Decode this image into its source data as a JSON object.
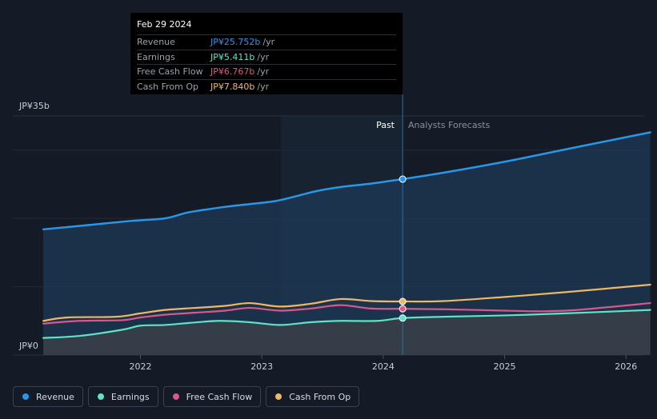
{
  "tooltip": {
    "date": "Feb 29 2024",
    "rows": [
      {
        "label": "Revenue",
        "value": "JP¥25.752b",
        "unit": "/yr",
        "color": "#2a96e8"
      },
      {
        "label": "Earnings",
        "value": "JP¥5.411b",
        "unit": "/yr",
        "color": "#5fe3c6"
      },
      {
        "label": "Free Cash Flow",
        "value": "JP¥6.767b",
        "unit": "/yr",
        "color": "#d9588c"
      },
      {
        "label": "Cash From Op",
        "value": "JP¥7.840b",
        "unit": "/yr",
        "color": "#f0b765"
      }
    ]
  },
  "labels": {
    "past": "Past",
    "forecast": "Analysts Forecasts"
  },
  "legend": [
    {
      "label": "Revenue",
      "color": "#2a96e8"
    },
    {
      "label": "Earnings",
      "color": "#5fe3c6"
    },
    {
      "label": "Free Cash Flow",
      "color": "#d9588c"
    },
    {
      "label": "Cash From Op",
      "color": "#f0b765"
    }
  ],
  "chart_data": {
    "type": "area",
    "title": "",
    "y_unit": "JP¥ billions",
    "ylim": [
      0,
      35
    ],
    "y_tick_labels": [
      {
        "value": 35,
        "label": "JP¥35b"
      },
      {
        "value": 0,
        "label": "JP¥0"
      }
    ],
    "xlim": [
      2021.18,
      2026.2
    ],
    "x_ticks": [
      2022,
      2023,
      2024,
      2025,
      2026
    ],
    "divider_x": 2024.16,
    "past_shade_start": 2023.16,
    "series": [
      {
        "name": "Revenue",
        "color": "#2a96e8",
        "fill": true,
        "x": [
          2021.2,
          2021.5,
          2021.9,
          2022.2,
          2022.4,
          2022.7,
          2022.9,
          2023.1,
          2023.25,
          2023.45,
          2023.65,
          2023.9,
          2024.16,
          2024.5,
          2025.0,
          2025.5,
          2026.2
        ],
        "y": [
          18.4,
          18.9,
          19.6,
          20.0,
          20.9,
          21.7,
          22.1,
          22.5,
          23.1,
          24.0,
          24.6,
          25.1,
          25.75,
          26.7,
          28.3,
          30.1,
          32.6
        ]
      },
      {
        "name": "Earnings",
        "color": "#5fe3c6",
        "fill": false,
        "x": [
          2021.2,
          2021.5,
          2021.85,
          2022.0,
          2022.2,
          2022.4,
          2022.65,
          2022.9,
          2023.15,
          2023.4,
          2023.65,
          2023.95,
          2024.16,
          2024.5,
          2025.0,
          2025.5,
          2026.2
        ],
        "y": [
          2.5,
          2.8,
          3.7,
          4.3,
          4.4,
          4.7,
          5.0,
          4.8,
          4.4,
          4.8,
          5.0,
          5.0,
          5.41,
          5.6,
          5.8,
          6.1,
          6.6
        ]
      },
      {
        "name": "Free Cash Flow",
        "color": "#d9588c",
        "fill": false,
        "x": [
          2021.2,
          2021.5,
          2021.85,
          2022.0,
          2022.2,
          2022.45,
          2022.7,
          2022.9,
          2023.15,
          2023.4,
          2023.65,
          2023.9,
          2024.16,
          2024.5,
          2025.0,
          2025.3,
          2025.6,
          2026.2
        ],
        "y": [
          4.6,
          5.0,
          5.1,
          5.5,
          5.9,
          6.2,
          6.5,
          6.9,
          6.5,
          6.8,
          7.3,
          6.8,
          6.77,
          6.7,
          6.5,
          6.4,
          6.6,
          7.6
        ]
      },
      {
        "name": "Cash From Op",
        "color": "#f0b765",
        "fill": false,
        "x": [
          2021.2,
          2021.4,
          2021.8,
          2022.0,
          2022.2,
          2022.45,
          2022.7,
          2022.9,
          2023.15,
          2023.4,
          2023.65,
          2023.9,
          2024.16,
          2024.5,
          2025.0,
          2025.5,
          2026.2
        ],
        "y": [
          5.0,
          5.5,
          5.6,
          6.1,
          6.6,
          6.9,
          7.2,
          7.6,
          7.1,
          7.5,
          8.2,
          7.9,
          7.84,
          7.9,
          8.5,
          9.2,
          10.3
        ]
      }
    ]
  }
}
